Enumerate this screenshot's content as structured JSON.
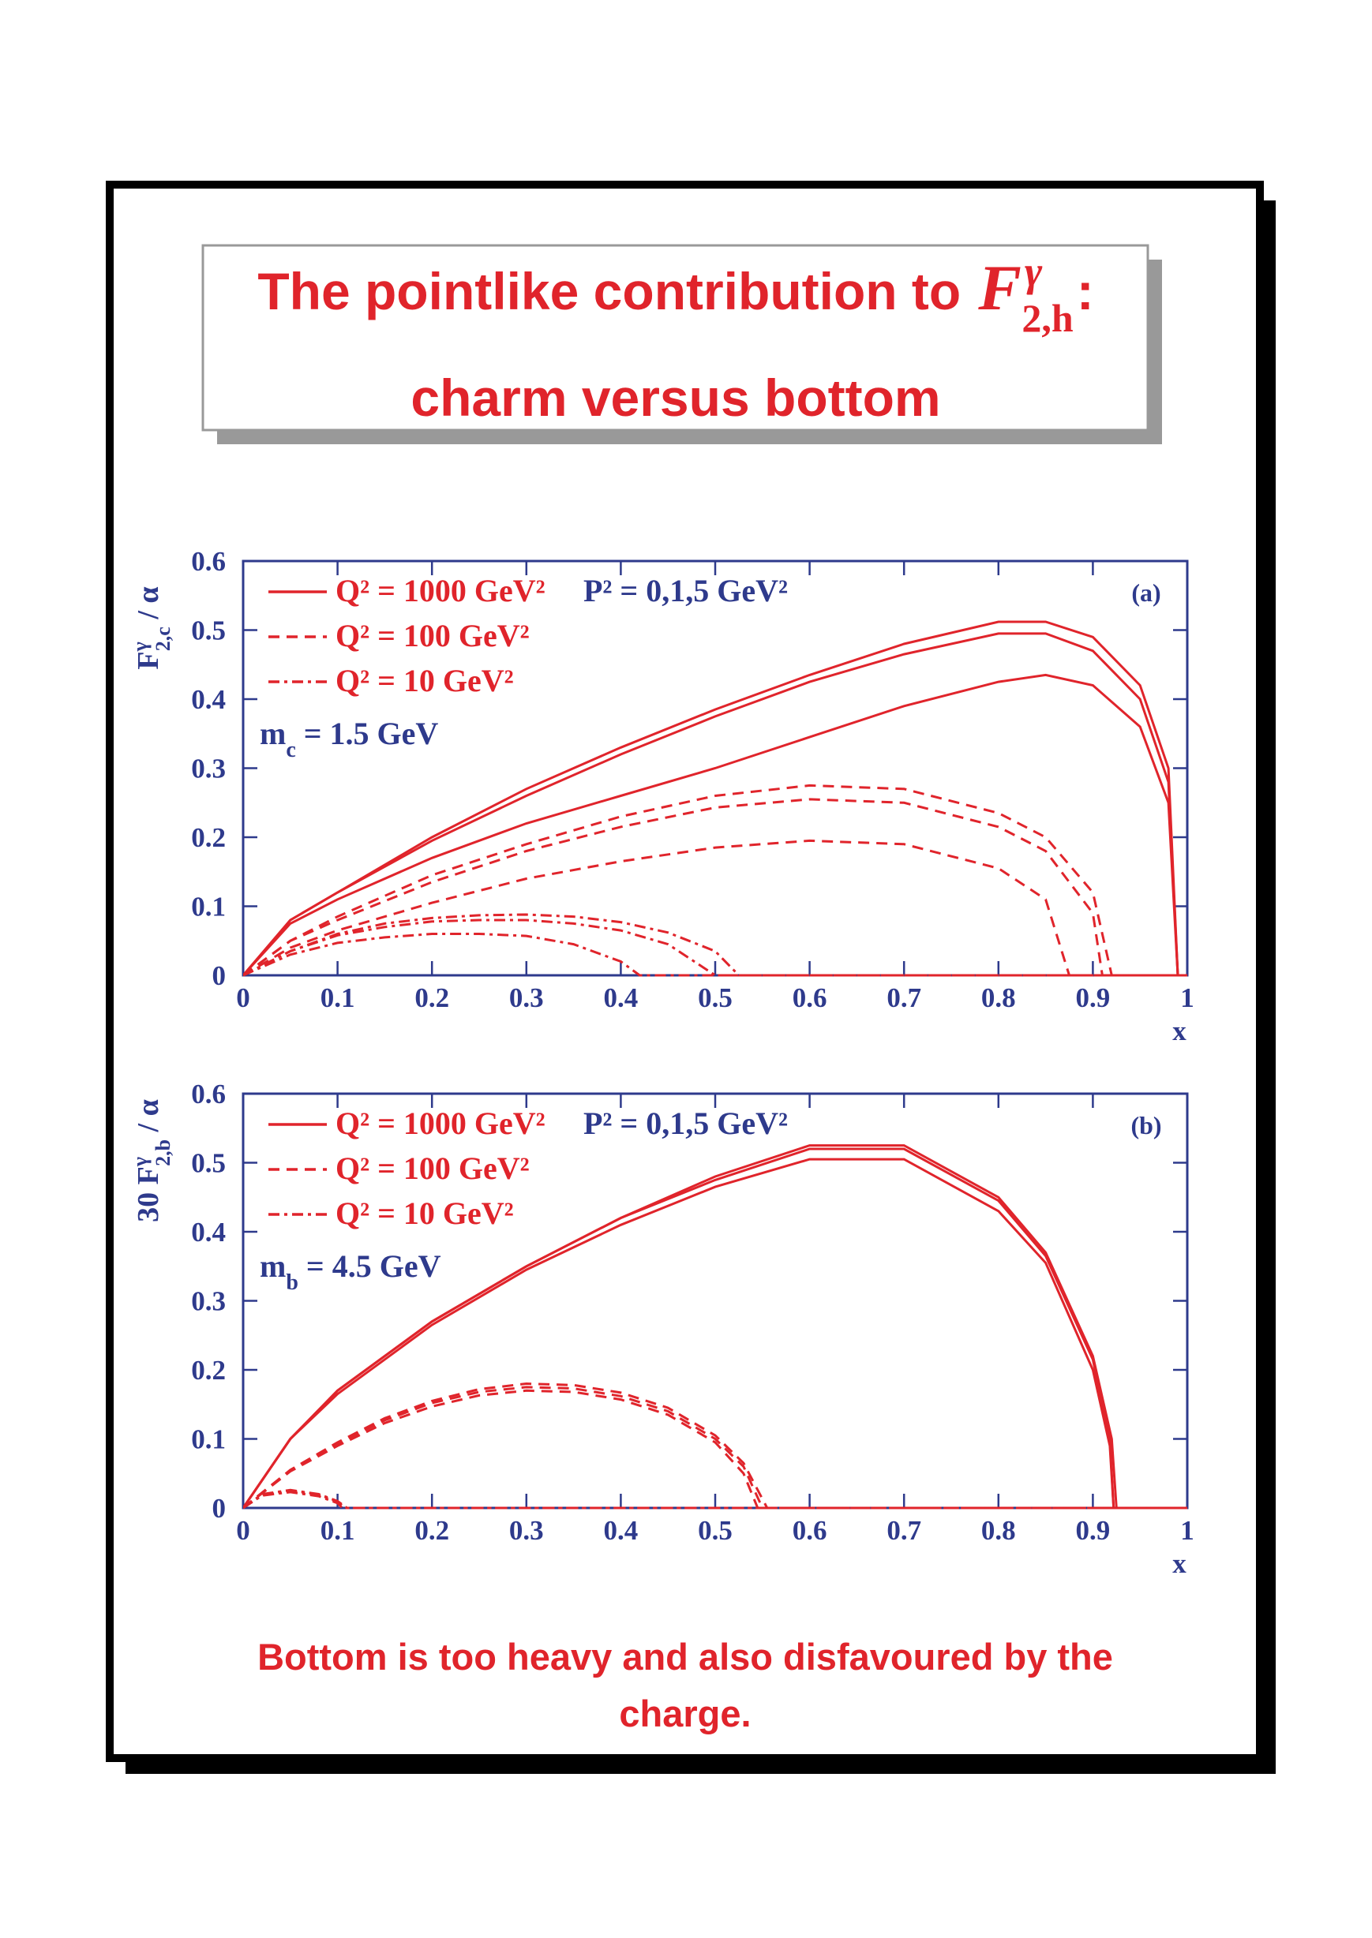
{
  "header": {
    "title": "The pointlike contribution to",
    "symbol": "F",
    "sup": "γ",
    "sub": "2,h",
    "colon": ":",
    "subtitle": "charm versus bottom"
  },
  "chart_data": [
    {
      "type": "line",
      "label": "(a)",
      "xlabel": "x",
      "ylabel": [
        "F",
        "γ",
        "2,c",
        " / α"
      ],
      "annotation": "P² = 0,1,5 GeV²",
      "mass": [
        "m",
        "c",
        " = 1.5 GeV"
      ],
      "xlim": [
        0,
        1
      ],
      "ylim": [
        0,
        0.6
      ],
      "xticks": [
        0,
        0.1,
        0.2,
        0.3,
        0.4,
        0.5,
        0.6,
        0.7,
        0.8,
        0.9,
        1
      ],
      "yticks": [
        0,
        0.1,
        0.2,
        0.3,
        0.4,
        0.5,
        0.6
      ],
      "series": [
        {
          "name": "Q² = 1000 GeV²",
          "color": "#e0242b",
          "dash": "solid",
          "curves": [
            {
              "x": [
                0,
                0.05,
                0.1,
                0.2,
                0.3,
                0.4,
                0.5,
                0.6,
                0.7,
                0.8,
                0.85,
                0.9,
                0.95,
                0.98,
                0.99,
                1
              ],
              "values": [
                0,
                0.08,
                0.12,
                0.2,
                0.27,
                0.33,
                0.385,
                0.435,
                0.48,
                0.512,
                0.512,
                0.49,
                0.42,
                0.3,
                0,
                0
              ]
            },
            {
              "x": [
                0,
                0.05,
                0.1,
                0.2,
                0.3,
                0.4,
                0.5,
                0.6,
                0.7,
                0.8,
                0.85,
                0.9,
                0.95,
                0.98,
                0.99,
                1
              ],
              "values": [
                0,
                0.08,
                0.12,
                0.195,
                0.26,
                0.32,
                0.375,
                0.425,
                0.465,
                0.495,
                0.495,
                0.47,
                0.4,
                0.28,
                0,
                0
              ]
            },
            {
              "x": [
                0,
                0.05,
                0.1,
                0.2,
                0.3,
                0.4,
                0.5,
                0.6,
                0.7,
                0.8,
                0.85,
                0.9,
                0.95,
                0.98,
                0.99,
                1
              ],
              "values": [
                0,
                0.075,
                0.11,
                0.17,
                0.22,
                0.26,
                0.3,
                0.345,
                0.39,
                0.425,
                0.435,
                0.42,
                0.36,
                0.25,
                0,
                0
              ]
            }
          ]
        },
        {
          "name": "Q² = 100 GeV²",
          "color": "#e0242b",
          "dash": "dashed",
          "curves": [
            {
              "x": [
                0,
                0.05,
                0.1,
                0.2,
                0.3,
                0.4,
                0.5,
                0.6,
                0.7,
                0.8,
                0.85,
                0.9,
                0.92,
                1
              ],
              "values": [
                0,
                0.05,
                0.085,
                0.145,
                0.19,
                0.23,
                0.26,
                0.275,
                0.27,
                0.235,
                0.2,
                0.12,
                0,
                0
              ]
            },
            {
              "x": [
                0,
                0.05,
                0.1,
                0.2,
                0.3,
                0.4,
                0.5,
                0.6,
                0.7,
                0.8,
                0.85,
                0.9,
                0.91,
                1
              ],
              "values": [
                0,
                0.05,
                0.08,
                0.135,
                0.18,
                0.215,
                0.243,
                0.255,
                0.25,
                0.215,
                0.18,
                0.09,
                0,
                0
              ]
            },
            {
              "x": [
                0,
                0.05,
                0.1,
                0.2,
                0.3,
                0.4,
                0.5,
                0.6,
                0.7,
                0.8,
                0.85,
                0.875,
                1
              ],
              "values": [
                0,
                0.04,
                0.065,
                0.105,
                0.14,
                0.165,
                0.185,
                0.195,
                0.19,
                0.155,
                0.11,
                0,
                0
              ]
            }
          ]
        },
        {
          "name": "Q² = 10 GeV²",
          "color": "#e0242b",
          "dash": "dashdot",
          "curves": [
            {
              "x": [
                0,
                0.05,
                0.1,
                0.15,
                0.2,
                0.25,
                0.3,
                0.35,
                0.4,
                0.45,
                0.5,
                0.525,
                1
              ],
              "values": [
                0,
                0.035,
                0.06,
                0.075,
                0.083,
                0.087,
                0.088,
                0.085,
                0.077,
                0.062,
                0.035,
                0,
                0
              ]
            },
            {
              "x": [
                0,
                0.05,
                0.1,
                0.15,
                0.2,
                0.25,
                0.3,
                0.35,
                0.4,
                0.45,
                0.5,
                1
              ],
              "values": [
                0,
                0.035,
                0.058,
                0.07,
                0.078,
                0.08,
                0.08,
                0.075,
                0.065,
                0.045,
                0,
                0
              ]
            },
            {
              "x": [
                0,
                0.05,
                0.1,
                0.15,
                0.2,
                0.25,
                0.3,
                0.35,
                0.4,
                0.42,
                1
              ],
              "values": [
                0,
                0.03,
                0.047,
                0.055,
                0.06,
                0.06,
                0.057,
                0.045,
                0.02,
                0,
                0
              ]
            }
          ]
        }
      ]
    },
    {
      "type": "line",
      "label": "(b)",
      "xlabel": "x",
      "ylabel": [
        "30 F",
        "γ",
        "2,b",
        " / α"
      ],
      "annotation": "P² = 0,1,5 GeV²",
      "mass": [
        "m",
        "b",
        " = 4.5 GeV"
      ],
      "xlim": [
        0,
        1
      ],
      "ylim": [
        0,
        0.6
      ],
      "xticks": [
        0,
        0.1,
        0.2,
        0.3,
        0.4,
        0.5,
        0.6,
        0.7,
        0.8,
        0.9,
        1
      ],
      "yticks": [
        0,
        0.1,
        0.2,
        0.3,
        0.4,
        0.5,
        0.6
      ],
      "series": [
        {
          "name": "Q² = 1000 GeV²",
          "color": "#e0242b",
          "dash": "solid",
          "curves": [
            {
              "x": [
                0,
                0.05,
                0.1,
                0.2,
                0.3,
                0.4,
                0.5,
                0.6,
                0.7,
                0.8,
                0.85,
                0.9,
                0.92,
                0.925,
                1
              ],
              "values": [
                0,
                0.1,
                0.17,
                0.27,
                0.35,
                0.42,
                0.48,
                0.525,
                0.525,
                0.45,
                0.37,
                0.22,
                0.1,
                0,
                0
              ]
            },
            {
              "x": [
                0,
                0.05,
                0.1,
                0.2,
                0.3,
                0.4,
                0.5,
                0.6,
                0.7,
                0.8,
                0.85,
                0.9,
                0.918,
                0.922,
                1
              ],
              "values": [
                0,
                0.1,
                0.17,
                0.27,
                0.35,
                0.42,
                0.475,
                0.52,
                0.52,
                0.445,
                0.365,
                0.215,
                0.1,
                0,
                0
              ]
            },
            {
              "x": [
                0,
                0.05,
                0.1,
                0.2,
                0.3,
                0.4,
                0.5,
                0.6,
                0.7,
                0.8,
                0.85,
                0.9,
                0.918,
                0.922,
                1
              ],
              "values": [
                0,
                0.1,
                0.165,
                0.265,
                0.345,
                0.41,
                0.465,
                0.505,
                0.505,
                0.43,
                0.355,
                0.2,
                0.09,
                0,
                0
              ]
            }
          ]
        },
        {
          "name": "Q² = 100 GeV²",
          "color": "#e0242b",
          "dash": "dashed",
          "curves": [
            {
              "x": [
                0,
                0.05,
                0.1,
                0.15,
                0.2,
                0.25,
                0.3,
                0.35,
                0.4,
                0.45,
                0.5,
                0.53,
                0.555,
                1
              ],
              "values": [
                0,
                0.055,
                0.095,
                0.13,
                0.155,
                0.172,
                0.18,
                0.178,
                0.167,
                0.145,
                0.105,
                0.065,
                0,
                0
              ]
            },
            {
              "x": [
                0,
                0.05,
                0.1,
                0.15,
                0.2,
                0.25,
                0.3,
                0.35,
                0.4,
                0.45,
                0.5,
                0.53,
                0.55,
                1
              ],
              "values": [
                0,
                0.055,
                0.093,
                0.127,
                0.152,
                0.168,
                0.175,
                0.173,
                0.162,
                0.14,
                0.1,
                0.06,
                0,
                0
              ]
            },
            {
              "x": [
                0,
                0.05,
                0.1,
                0.15,
                0.2,
                0.25,
                0.3,
                0.35,
                0.4,
                0.45,
                0.5,
                0.53,
                0.545,
                1
              ],
              "values": [
                0,
                0.053,
                0.09,
                0.123,
                0.147,
                0.163,
                0.17,
                0.168,
                0.157,
                0.135,
                0.095,
                0.05,
                0,
                0
              ]
            }
          ]
        },
        {
          "name": "Q² = 10 GeV²",
          "color": "#e0242b",
          "dash": "dashdot",
          "curves": [
            {
              "x": [
                0,
                0.02,
                0.05,
                0.08,
                0.1,
                0.11,
                1
              ],
              "values": [
                0,
                0.02,
                0.026,
                0.02,
                0.01,
                0,
                0
              ]
            },
            {
              "x": [
                0,
                0.02,
                0.05,
                0.08,
                0.1,
                0.108,
                1
              ],
              "values": [
                0,
                0.019,
                0.025,
                0.019,
                0.009,
                0,
                0
              ]
            },
            {
              "x": [
                0,
                0.02,
                0.05,
                0.08,
                0.1,
                0.105,
                1
              ],
              "values": [
                0,
                0.018,
                0.023,
                0.017,
                0.007,
                0,
                0
              ]
            }
          ]
        }
      ]
    }
  ],
  "footer": [
    "Bottom is too heavy and also disfavoured by the",
    "charge."
  ]
}
